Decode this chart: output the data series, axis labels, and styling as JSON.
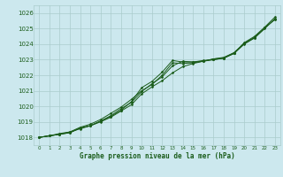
{
  "bg_color": "#cce8ee",
  "grid_color": "#aacccc",
  "line_color": "#1a5c1a",
  "marker_color": "#1a5c1a",
  "xlabel": "Graphe pression niveau de la mer (hPa)",
  "xlim": [
    -0.5,
    23.5
  ],
  "ylim": [
    1017.5,
    1026.5
  ],
  "yticks": [
    1018,
    1019,
    1020,
    1021,
    1022,
    1023,
    1024,
    1025,
    1026
  ],
  "xticks": [
    0,
    1,
    2,
    3,
    4,
    5,
    6,
    7,
    8,
    9,
    10,
    11,
    12,
    13,
    14,
    15,
    16,
    17,
    18,
    19,
    20,
    21,
    22,
    23
  ],
  "series": [
    [
      1018.0,
      1018.1,
      1018.2,
      1018.3,
      1018.6,
      1018.75,
      1019.05,
      1019.35,
      1019.75,
      1020.3,
      1021.2,
      1021.6,
      1022.2,
      1022.95,
      1022.85,
      1022.85,
      1022.95,
      1023.0,
      1023.1,
      1023.4,
      1024.0,
      1024.4,
      1025.0,
      1025.65
    ],
    [
      1018.0,
      1018.1,
      1018.2,
      1018.35,
      1018.55,
      1018.75,
      1019.0,
      1019.3,
      1019.7,
      1020.1,
      1020.8,
      1021.25,
      1021.65,
      1022.15,
      1022.55,
      1022.75,
      1022.9,
      1023.05,
      1023.1,
      1023.45,
      1024.05,
      1024.45,
      1025.05,
      1025.6
    ],
    [
      1018.0,
      1018.1,
      1018.25,
      1018.35,
      1018.65,
      1018.85,
      1019.15,
      1019.55,
      1019.95,
      1020.45,
      1021.0,
      1021.4,
      1022.0,
      1022.8,
      1022.75,
      1022.8,
      1022.9,
      1023.0,
      1023.1,
      1023.4,
      1024.1,
      1024.5,
      1025.1,
      1025.75
    ],
    [
      1018.0,
      1018.1,
      1018.2,
      1018.3,
      1018.6,
      1018.75,
      1019.05,
      1019.4,
      1019.85,
      1020.25,
      1020.95,
      1021.45,
      1021.9,
      1022.6,
      1022.9,
      1022.85,
      1022.9,
      1023.05,
      1023.15,
      1023.45,
      1024.05,
      1024.4,
      1025.05,
      1025.6
    ]
  ]
}
